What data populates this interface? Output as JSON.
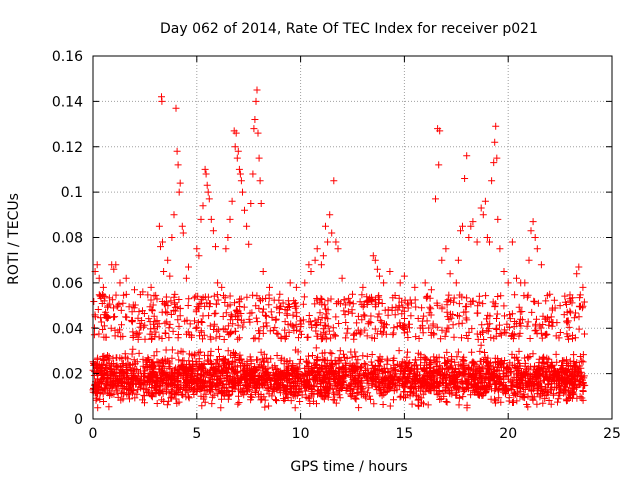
{
  "chart_data": {
    "type": "scatter",
    "title": "Day 062 of 2014, Rate Of TEC Index for receiver p021",
    "xlabel": "GPS time / hours",
    "ylabel": "ROTI / TECUs",
    "xlim": [
      0,
      25
    ],
    "ylim": [
      0,
      0.16
    ],
    "xticks": [
      0,
      5,
      10,
      15,
      20,
      25
    ],
    "yticks": [
      0,
      0.02,
      0.04,
      0.06,
      0.08,
      0.1,
      0.12,
      0.14,
      0.16
    ],
    "xtick_labels": [
      "0",
      "5",
      "10",
      "15",
      "20",
      "25"
    ],
    "ytick_labels": [
      "0",
      "0.02",
      "0.04",
      "0.06",
      "0.08",
      "0.1",
      "0.12",
      "0.14",
      "0.16"
    ],
    "grid": true,
    "marker": "+",
    "marker_color": "#ff0000",
    "data_range_hours": [
      0,
      23.7
    ],
    "background": {
      "core_range": [
        0.005,
        0.035
      ],
      "upper_range": [
        0.035,
        0.055
      ],
      "samples_per_hour": 160
    },
    "series": [
      {
        "name": "ROTI p021",
        "points": [
          [
            0.1,
            0.065
          ],
          [
            0.2,
            0.068
          ],
          [
            0.3,
            0.062
          ],
          [
            0.5,
            0.058
          ],
          [
            0.9,
            0.068
          ],
          [
            1.0,
            0.066
          ],
          [
            1.1,
            0.068
          ],
          [
            1.3,
            0.06
          ],
          [
            1.6,
            0.062
          ],
          [
            2.0,
            0.057
          ],
          [
            2.4,
            0.056
          ],
          [
            2.8,
            0.058
          ],
          [
            3.2,
            0.085
          ],
          [
            3.25,
            0.076
          ],
          [
            3.3,
            0.142
          ],
          [
            3.32,
            0.14
          ],
          [
            3.35,
            0.078
          ],
          [
            3.4,
            0.065
          ],
          [
            3.6,
            0.07
          ],
          [
            3.7,
            0.063
          ],
          [
            3.8,
            0.08
          ],
          [
            3.9,
            0.09
          ],
          [
            4.0,
            0.137
          ],
          [
            4.05,
            0.118
          ],
          [
            4.1,
            0.112
          ],
          [
            4.15,
            0.1
          ],
          [
            4.2,
            0.104
          ],
          [
            4.3,
            0.085
          ],
          [
            4.35,
            0.082
          ],
          [
            4.5,
            0.062
          ],
          [
            4.6,
            0.067
          ],
          [
            5.0,
            0.075
          ],
          [
            5.1,
            0.072
          ],
          [
            5.2,
            0.088
          ],
          [
            5.3,
            0.094
          ],
          [
            5.4,
            0.11
          ],
          [
            5.45,
            0.108
          ],
          [
            5.5,
            0.103
          ],
          [
            5.55,
            0.1
          ],
          [
            5.6,
            0.097
          ],
          [
            5.7,
            0.088
          ],
          [
            5.8,
            0.083
          ],
          [
            5.9,
            0.076
          ],
          [
            6.0,
            0.06
          ],
          [
            6.2,
            0.058
          ],
          [
            6.4,
            0.075
          ],
          [
            6.5,
            0.08
          ],
          [
            6.6,
            0.088
          ],
          [
            6.7,
            0.096
          ],
          [
            6.8,
            0.127
          ],
          [
            6.85,
            0.12
          ],
          [
            6.9,
            0.126
          ],
          [
            6.95,
            0.115
          ],
          [
            7.0,
            0.118
          ],
          [
            7.05,
            0.11
          ],
          [
            7.1,
            0.108
          ],
          [
            7.15,
            0.105
          ],
          [
            7.2,
            0.1
          ],
          [
            7.3,
            0.092
          ],
          [
            7.4,
            0.085
          ],
          [
            7.5,
            0.077
          ],
          [
            7.6,
            0.095
          ],
          [
            7.7,
            0.108
          ],
          [
            7.75,
            0.128
          ],
          [
            7.8,
            0.132
          ],
          [
            7.85,
            0.14
          ],
          [
            7.9,
            0.145
          ],
          [
            7.95,
            0.126
          ],
          [
            8.0,
            0.115
          ],
          [
            8.05,
            0.105
          ],
          [
            8.1,
            0.095
          ],
          [
            8.2,
            0.065
          ],
          [
            8.5,
            0.058
          ],
          [
            9.0,
            0.055
          ],
          [
            9.5,
            0.06
          ],
          [
            9.8,
            0.058
          ],
          [
            10.2,
            0.06
          ],
          [
            10.4,
            0.068
          ],
          [
            10.5,
            0.065
          ],
          [
            10.7,
            0.07
          ],
          [
            10.8,
            0.075
          ],
          [
            11.0,
            0.068
          ],
          [
            11.1,
            0.072
          ],
          [
            11.2,
            0.085
          ],
          [
            11.3,
            0.078
          ],
          [
            11.4,
            0.09
          ],
          [
            11.5,
            0.082
          ],
          [
            11.6,
            0.105
          ],
          [
            11.7,
            0.078
          ],
          [
            11.8,
            0.075
          ],
          [
            12.0,
            0.062
          ],
          [
            12.5,
            0.055
          ],
          [
            13.0,
            0.058
          ],
          [
            13.5,
            0.072
          ],
          [
            13.6,
            0.07
          ],
          [
            13.7,
            0.066
          ],
          [
            13.8,
            0.063
          ],
          [
            14.0,
            0.06
          ],
          [
            14.3,
            0.065
          ],
          [
            14.8,
            0.06
          ],
          [
            15.0,
            0.063
          ],
          [
            15.5,
            0.058
          ],
          [
            16.0,
            0.06
          ],
          [
            16.3,
            0.057
          ],
          [
            16.5,
            0.097
          ],
          [
            16.6,
            0.128
          ],
          [
            16.65,
            0.112
          ],
          [
            16.7,
            0.127
          ],
          [
            16.8,
            0.07
          ],
          [
            17.0,
            0.075
          ],
          [
            17.2,
            0.064
          ],
          [
            17.5,
            0.06
          ],
          [
            17.6,
            0.07
          ],
          [
            17.7,
            0.083
          ],
          [
            17.8,
            0.085
          ],
          [
            17.9,
            0.106
          ],
          [
            18.0,
            0.116
          ],
          [
            18.1,
            0.08
          ],
          [
            18.2,
            0.085
          ],
          [
            18.3,
            0.087
          ],
          [
            18.5,
            0.078
          ],
          [
            18.7,
            0.093
          ],
          [
            18.8,
            0.09
          ],
          [
            18.9,
            0.096
          ],
          [
            19.0,
            0.08
          ],
          [
            19.1,
            0.078
          ],
          [
            19.2,
            0.105
          ],
          [
            19.3,
            0.113
          ],
          [
            19.35,
            0.122
          ],
          [
            19.4,
            0.129
          ],
          [
            19.45,
            0.115
          ],
          [
            19.5,
            0.088
          ],
          [
            19.6,
            0.075
          ],
          [
            19.8,
            0.065
          ],
          [
            20.0,
            0.06
          ],
          [
            20.2,
            0.078
          ],
          [
            20.4,
            0.062
          ],
          [
            20.6,
            0.06
          ],
          [
            20.8,
            0.06
          ],
          [
            21.0,
            0.07
          ],
          [
            21.1,
            0.083
          ],
          [
            21.2,
            0.087
          ],
          [
            21.3,
            0.08
          ],
          [
            21.4,
            0.075
          ],
          [
            21.6,
            0.068
          ],
          [
            22.0,
            0.055
          ],
          [
            22.5,
            0.05
          ],
          [
            23.0,
            0.052
          ],
          [
            23.3,
            0.064
          ],
          [
            23.4,
            0.067
          ],
          [
            23.6,
            0.058
          ]
        ]
      }
    ]
  }
}
